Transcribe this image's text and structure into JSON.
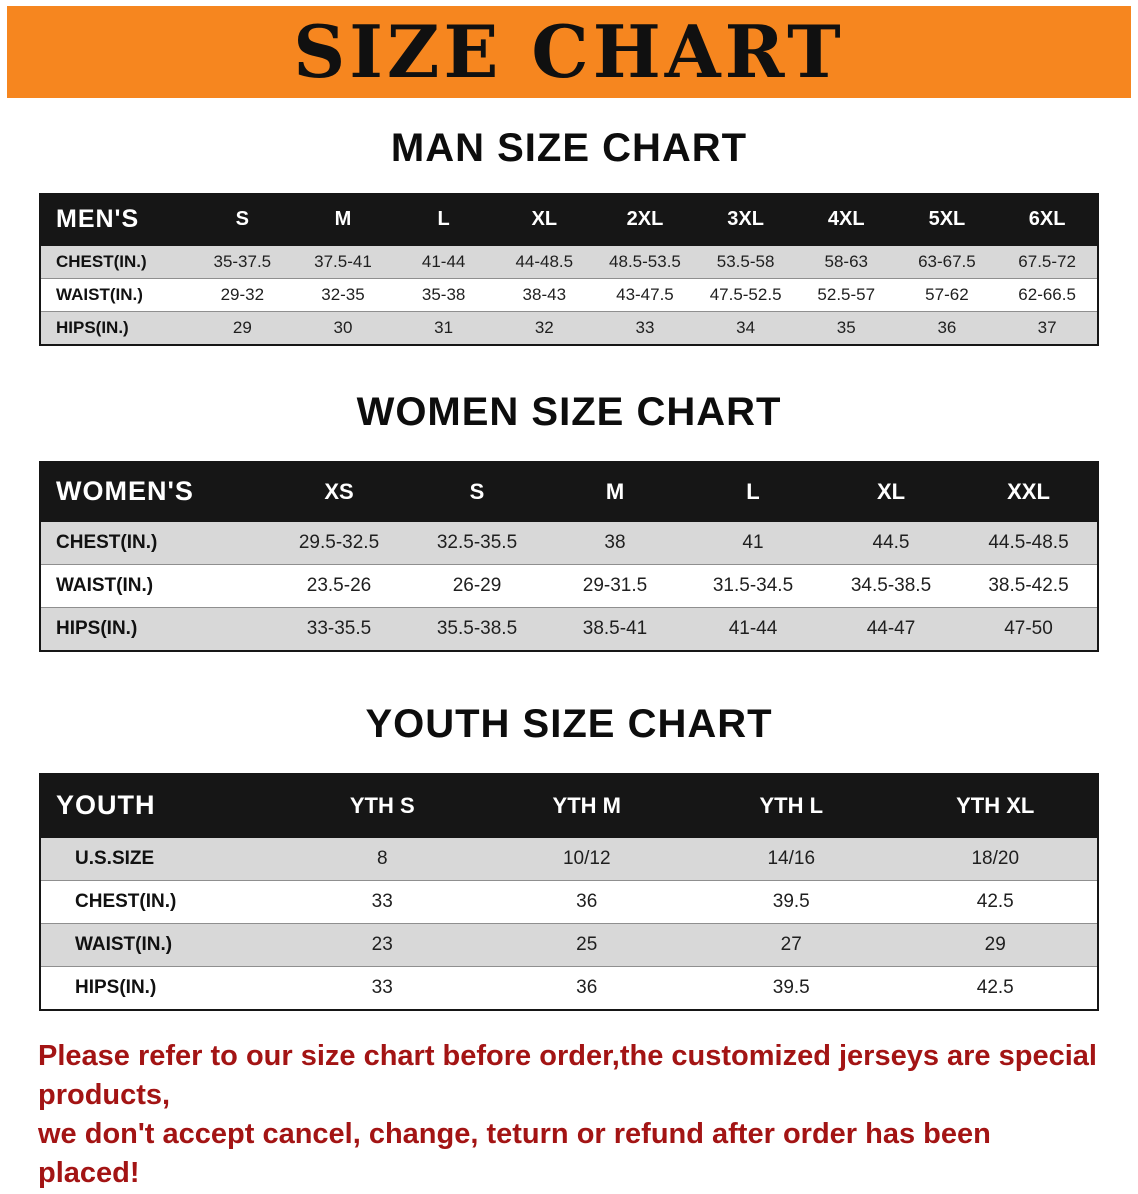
{
  "banner": {
    "title": "SIZE CHART",
    "bg_color": "#F6861F"
  },
  "sections": {
    "men": {
      "heading": "MAN SIZE CHART",
      "table": {
        "header": [
          "MEN'S",
          "S",
          "M",
          "L",
          "XL",
          "2XL",
          "3XL",
          "4XL",
          "5XL",
          "6XL"
        ],
        "rows": [
          [
            "CHEST(IN.)",
            "35-37.5",
            "37.5-41",
            "41-44",
            "44-48.5",
            "48.5-53.5",
            "53.5-58",
            "58-63",
            "63-67.5",
            "67.5-72"
          ],
          [
            "WAIST(IN.)",
            "29-32",
            "32-35",
            "35-38",
            "38-43",
            "43-47.5",
            "47.5-52.5",
            "52.5-57",
            "57-62",
            "62-66.5"
          ],
          [
            "HIPS(IN.)",
            "29",
            "30",
            "31",
            "32",
            "33",
            "34",
            "35",
            "36",
            "37"
          ]
        ]
      }
    },
    "women": {
      "heading": "WOMEN SIZE CHART",
      "table": {
        "header": [
          "WOMEN'S",
          "XS",
          "S",
          "M",
          "L",
          "XL",
          "XXL"
        ],
        "rows": [
          [
            "CHEST(IN.)",
            "29.5-32.5",
            "32.5-35.5",
            "38",
            "41",
            "44.5",
            "44.5-48.5"
          ],
          [
            "WAIST(IN.)",
            "23.5-26",
            "26-29",
            "29-31.5",
            "31.5-34.5",
            "34.5-38.5",
            "38.5-42.5"
          ],
          [
            "HIPS(IN.)",
            "33-35.5",
            "35.5-38.5",
            "38.5-41",
            "41-44",
            "44-47",
            "47-50"
          ]
        ]
      }
    },
    "youth": {
      "heading": "YOUTH SIZE CHART",
      "table": {
        "header": [
          "YOUTH",
          "YTH S",
          "YTH M",
          "YTH L",
          "YTH XL"
        ],
        "rows": [
          [
            "U.S.SIZE",
            "8",
            "10/12",
            "14/16",
            "18/20"
          ],
          [
            "CHEST(IN.)",
            "33",
            "36",
            "39.5",
            "42.5"
          ],
          [
            "WAIST(IN.)",
            "23",
            "25",
            "27",
            "29"
          ],
          [
            "HIPS(IN.)",
            "33",
            "36",
            "39.5",
            "42.5"
          ]
        ]
      }
    }
  },
  "disclaimer": {
    "line1": "Please refer to our size chart before order,the customized jerseys are special products,",
    "line2": "we don't accept cancel, change, teturn or refund after order has been placed!",
    "color": "#A31414"
  }
}
